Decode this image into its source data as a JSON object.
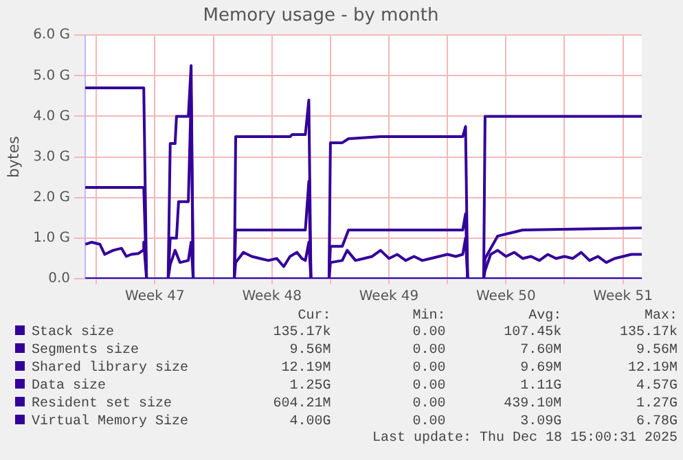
{
  "chart_data": {
    "type": "line",
    "title": "Memory usage - by month",
    "ylabel": "bytes",
    "xlim": [
      "2025-11-15T08:00",
      "2025-12-18T15:00"
    ],
    "xticks": [
      {
        "value": "2025-11-16T00:00",
        "label": null
      },
      {
        "value": "2025-11-19T12:00",
        "label": "Week 47"
      },
      {
        "value": "2025-11-23T00:00",
        "label": null
      },
      {
        "value": "2025-11-26T12:00",
        "label": "Week 48"
      },
      {
        "value": "2025-11-30T00:00",
        "label": null
      },
      {
        "value": "2025-12-03T12:00",
        "label": "Week 49"
      },
      {
        "value": "2025-12-07T00:00",
        "label": null
      },
      {
        "value": "2025-12-10T12:00",
        "label": "Week 50"
      },
      {
        "value": "2025-12-14T00:00",
        "label": null
      },
      {
        "value": "2025-12-17T12:00",
        "label": "Week 51"
      }
    ],
    "ylim": [
      0,
      6
    ],
    "yticks": [
      {
        "value": 0,
        "label": "0.0"
      },
      {
        "value": 1,
        "label": "1.0 G"
      },
      {
        "value": 2,
        "label": "2.0 G"
      },
      {
        "value": 3,
        "label": "3.0 G"
      },
      {
        "value": 4,
        "label": "4.0 G"
      },
      {
        "value": 5,
        "label": "5.0 G"
      },
      {
        "value": 6,
        "label": "6.0 G"
      }
    ],
    "grid": true,
    "legend": "bottom",
    "marker": "none",
    "line_style": "solid",
    "series": [
      {
        "name": "Stack size",
        "color": "#330099",
        "x": [
          "2025-11-15T08:00",
          "2025-12-18T15:00"
        ],
        "values": [
          0,
          0
        ]
      },
      {
        "name": "Segments size",
        "color": "#330099"
      },
      {
        "name": "Shared library size",
        "color": "#330099"
      },
      {
        "name": "Data size",
        "color": "#330099",
        "x": [
          "2025-11-15T08:00",
          "2025-11-18T20:00",
          "2025-11-19T00:00",
          "2025-11-20T07:00",
          "2025-11-20T10:00",
          "2025-11-20T19:00",
          "2025-11-20T22:00",
          "2025-11-21T12:00",
          "2025-11-21T16:00",
          "2025-11-21T19:00",
          "2025-11-24T06:00",
          "2025-11-24T08:00",
          "2025-11-28T12:00",
          "2025-11-28T17:00",
          "2025-11-28T20:00",
          "2025-11-29T22:00",
          "2025-11-30T00:00",
          "2025-11-30T17:00",
          "2025-12-01T02:00",
          "2025-12-07T22:00",
          "2025-12-08T02:00",
          "2025-12-08T05:00",
          "2025-12-09T04:00",
          "2025-12-09T06:00",
          "2025-12-10T00:00",
          "2025-12-11T00:00",
          "2025-12-11T12:00",
          "2025-12-18T15:00"
        ],
        "values": [
          2.25,
          2.25,
          0,
          0,
          1.0,
          1.0,
          1.9,
          1.9,
          4.5,
          0,
          0,
          1.2,
          1.2,
          2.4,
          0,
          0,
          0.8,
          0.8,
          1.2,
          1.2,
          1.6,
          0,
          0,
          0.5,
          1.05,
          1.15,
          1.2,
          1.25
        ]
      },
      {
        "name": "Resident set size",
        "color": "#330099",
        "x": [
          "2025-11-15T08:00",
          "2025-11-15T17:00",
          "2025-11-16T05:00",
          "2025-11-16T12:00",
          "2025-11-17T00:00",
          "2025-11-17T12:00",
          "2025-11-17T19:00",
          "2025-11-18T02:00",
          "2025-11-18T12:00",
          "2025-11-18T19:00",
          "2025-11-18T20:00",
          "2025-11-19T00:00",
          "2025-11-20T07:00",
          "2025-11-20T10:00",
          "2025-11-20T17:00",
          "2025-11-21T00:00",
          "2025-11-21T12:00",
          "2025-11-21T16:00",
          "2025-11-21T19:00",
          "2025-11-24T06:00",
          "2025-11-24T08:00",
          "2025-11-24T19:00",
          "2025-11-25T07:00",
          "2025-11-25T19:00",
          "2025-11-26T07:00",
          "2025-11-26T19:00",
          "2025-11-27T05:00",
          "2025-11-27T14:00",
          "2025-11-28T00:00",
          "2025-11-28T07:00",
          "2025-11-28T12:00",
          "2025-11-28T17:00",
          "2025-11-28T20:00",
          "2025-11-29T22:00",
          "2025-11-30T00:00",
          "2025-11-30T17:00",
          "2025-12-01T00:00",
          "2025-12-01T12:00",
          "2025-12-02T00:00",
          "2025-12-02T12:00",
          "2025-12-03T00:00",
          "2025-12-03T12:00",
          "2025-12-04T00:00",
          "2025-12-04T12:00",
          "2025-12-05T00:00",
          "2025-12-05T12:00",
          "2025-12-06T00:00",
          "2025-12-06T12:00",
          "2025-12-07T00:00",
          "2025-12-07T12:00",
          "2025-12-07T22:00",
          "2025-12-08T02:00",
          "2025-12-08T05:00",
          "2025-12-09T04:00",
          "2025-12-09T06:00",
          "2025-12-09T14:00",
          "2025-12-10T00:00",
          "2025-12-10T12:00",
          "2025-12-11T00:00",
          "2025-12-11T12:00",
          "2025-12-12T00:00",
          "2025-12-12T12:00",
          "2025-12-13T00:00",
          "2025-12-13T12:00",
          "2025-12-14T00:00",
          "2025-12-14T12:00",
          "2025-12-15T00:00",
          "2025-12-15T12:00",
          "2025-12-16T00:00",
          "2025-12-16T12:00",
          "2025-12-17T00:00",
          "2025-12-17T12:00",
          "2025-12-18T00:00",
          "2025-12-18T15:00"
        ],
        "values": [
          0.85,
          0.9,
          0.85,
          0.6,
          0.7,
          0.75,
          0.55,
          0.6,
          0.62,
          0.7,
          0.9,
          0,
          0,
          0.35,
          0.7,
          0.4,
          0.45,
          0.9,
          0,
          0,
          0.4,
          0.65,
          0.55,
          0.5,
          0.45,
          0.5,
          0.3,
          0.55,
          0.65,
          0.5,
          0.45,
          0.9,
          0,
          0,
          0.4,
          0.45,
          0.7,
          0.45,
          0.5,
          0.55,
          0.7,
          0.5,
          0.6,
          0.45,
          0.55,
          0.45,
          0.5,
          0.55,
          0.6,
          0.55,
          0.6,
          1.0,
          0,
          0,
          0.2,
          0.6,
          0.7,
          0.55,
          0.65,
          0.5,
          0.55,
          0.45,
          0.6,
          0.5,
          0.55,
          0.5,
          0.65,
          0.45,
          0.55,
          0.4,
          0.5,
          0.55,
          0.6,
          0.6
        ]
      },
      {
        "name": "Virtual Memory Size",
        "color": "#330099",
        "x": [
          "2025-11-15T08:00",
          "2025-11-18T20:00",
          "2025-11-19T00:00",
          "2025-11-20T07:00",
          "2025-11-20T10:00",
          "2025-11-20T17:00",
          "2025-11-20T19:00",
          "2025-11-21T12:00",
          "2025-11-21T16:00",
          "2025-11-21T19:00",
          "2025-11-24T06:00",
          "2025-11-24T08:00",
          "2025-11-27T14:00",
          "2025-11-27T17:00",
          "2025-11-28T12:00",
          "2025-11-28T17:00",
          "2025-11-28T20:00",
          "2025-11-29T22:00",
          "2025-11-30T00:00",
          "2025-11-30T17:00",
          "2025-12-01T02:00",
          "2025-12-03T00:00",
          "2025-12-07T22:00",
          "2025-12-08T02:00",
          "2025-12-08T05:00",
          "2025-12-09T04:00",
          "2025-12-09T06:00",
          "2025-12-18T15:00"
        ],
        "values": [
          4.7,
          4.7,
          0,
          0,
          3.33,
          3.33,
          4.0,
          4.0,
          5.25,
          0,
          0,
          3.5,
          3.5,
          3.55,
          3.55,
          4.4,
          0,
          0,
          3.35,
          3.35,
          3.45,
          3.5,
          3.5,
          3.75,
          0,
          0,
          4.0,
          4.0
        ]
      }
    ],
    "annotations": [
      "Cur:",
      "Min:",
      "Avg:",
      "Max:",
      "135.17k",
      "0.00",
      "107.45k",
      "135.17k",
      "9.56M",
      "0.00",
      "7.60M",
      "9.56M",
      "12.19M",
      "0.00",
      "9.69M",
      "12.19M",
      "1.25G",
      "0.00",
      "1.11G",
      "4.57G",
      "604.21M",
      "0.00",
      "439.10M",
      "1.27G",
      "4.00G",
      "0.00",
      "3.09G",
      "6.78G",
      "Last update: Thu Dec 18 15:00:31 2025"
    ]
  }
}
